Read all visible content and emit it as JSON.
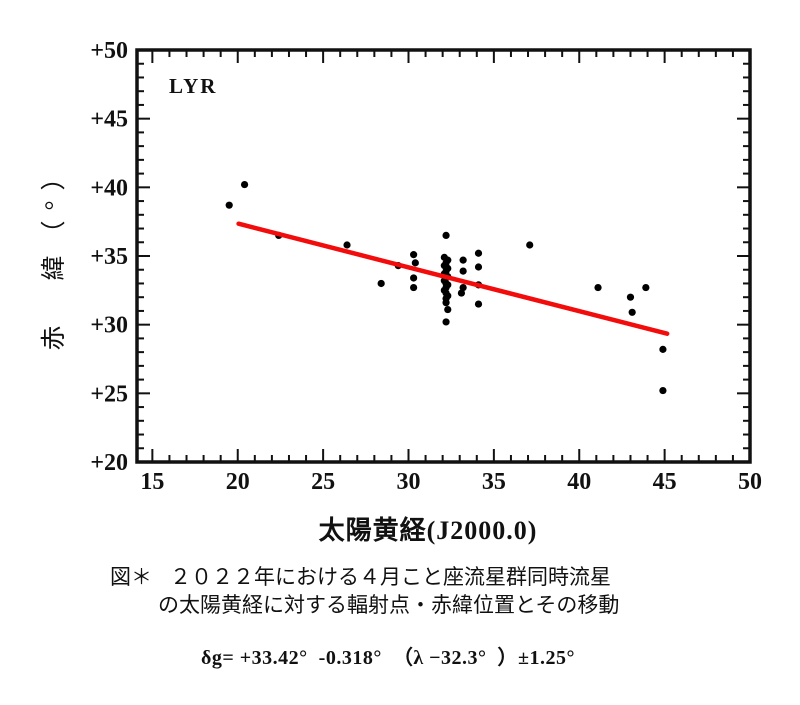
{
  "chart_data": {
    "type": "scatter",
    "title": "LYR",
    "xlabel": "太陽黄経(J2000.0)",
    "ylabel": "赤　緯（°）",
    "x_axis": {
      "min": 14.1,
      "max": 50,
      "major_ticks": [
        15,
        20,
        25,
        30,
        35,
        40,
        45,
        50
      ],
      "tick_labels": [
        "15",
        "20",
        "25",
        "30",
        "35",
        "40",
        "45",
        "50"
      ],
      "minor_step": 1
    },
    "y_axis": {
      "min": 20,
      "max": 50,
      "major_ticks": [
        20,
        25,
        30,
        35,
        40,
        45,
        50
      ],
      "tick_labels": [
        "+20",
        "+25",
        "+30",
        "+35",
        "+40",
        "+45",
        "+50"
      ],
      "minor_step": 1
    },
    "point_color": "#000000",
    "points": [
      [
        19.5,
        38.7
      ],
      [
        20.4,
        40.2
      ],
      [
        22.4,
        36.5
      ],
      [
        26.4,
        35.8
      ],
      [
        28.4,
        33.0
      ],
      [
        29.4,
        34.3
      ],
      [
        30.3,
        35.1
      ],
      [
        30.4,
        34.5
      ],
      [
        30.3,
        33.4
      ],
      [
        30.3,
        32.7
      ],
      [
        32.2,
        36.5
      ],
      [
        32.1,
        34.9
      ],
      [
        32.3,
        34.7
      ],
      [
        32.2,
        34.5
      ],
      [
        32.1,
        34.3
      ],
      [
        32.3,
        34.1
      ],
      [
        32.2,
        33.9
      ],
      [
        32.1,
        33.7
      ],
      [
        32.3,
        33.5
      ],
      [
        32.2,
        33.4
      ],
      [
        32.1,
        33.2
      ],
      [
        32.2,
        33.0
      ],
      [
        32.3,
        32.9
      ],
      [
        32.2,
        32.7
      ],
      [
        32.1,
        32.5
      ],
      [
        32.2,
        32.3
      ],
      [
        32.3,
        32.1
      ],
      [
        32.2,
        31.9
      ],
      [
        32.2,
        31.6
      ],
      [
        32.3,
        31.1
      ],
      [
        32.2,
        30.2
      ],
      [
        33.2,
        34.7
      ],
      [
        33.2,
        33.9
      ],
      [
        33.2,
        32.7
      ],
      [
        33.1,
        32.3
      ],
      [
        34.1,
        35.2
      ],
      [
        34.1,
        34.2
      ],
      [
        34.1,
        32.9
      ],
      [
        34.1,
        31.5
      ],
      [
        37.1,
        35.8
      ],
      [
        41.1,
        32.7
      ],
      [
        43.0,
        32.0
      ],
      [
        43.1,
        30.9
      ],
      [
        43.9,
        32.7
      ],
      [
        44.9,
        28.2
      ],
      [
        44.9,
        25.2
      ]
    ],
    "trend_line": {
      "x_start": 20.05,
      "y_start": 37.35,
      "x_end": 45.15,
      "y_end": 29.34,
      "color": "#f20c0c"
    }
  },
  "caption": {
    "label": "図＊",
    "line1": "２０２２年における４月こと座流星群同時流星",
    "line2": "の太陽黄経に対する輻射点・赤緯位置とその移動"
  },
  "formula": "δg= +33.42°  -0.318°  （λ −32.3°  ）±1.25°"
}
